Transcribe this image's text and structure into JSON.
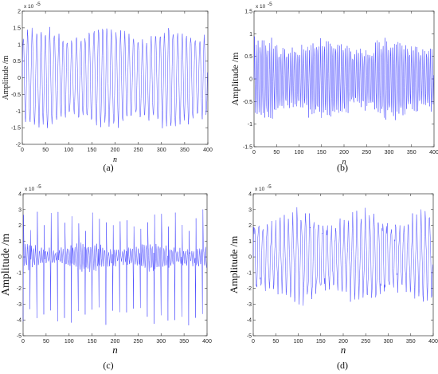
{
  "chart_data": [
    {
      "type": "line",
      "caption": "(a)",
      "ylabel": "Amplitude /m",
      "xlabel": "n",
      "scale_note": "x 10",
      "scale_exp": "-5",
      "xlim": [
        0,
        400
      ],
      "ylim": [
        -2,
        2
      ],
      "xticks": [
        "0",
        "50",
        "100",
        "150",
        "200",
        "250",
        "300",
        "350",
        "400"
      ],
      "yticks": [
        "-2",
        "-1.5",
        "-1",
        "-0.5",
        "0",
        "0.5",
        "1",
        "1.5",
        "2"
      ],
      "series_color": "#4b4bff",
      "n_points": 400,
      "signal": {
        "period": 9.5,
        "base_amplitude": 1.3,
        "amplitude_variation": 0.3,
        "min_approx": -1.75,
        "max_approx": 1.85
      }
    },
    {
      "type": "line",
      "caption": "(b)",
      "ylabel": "Amplitude /m",
      "xlabel": "n",
      "scale_note": "x 10",
      "scale_exp": "-5",
      "xlim": [
        0,
        400
      ],
      "ylim": [
        -1.5,
        1.5
      ],
      "xticks": [
        "0",
        "50",
        "100",
        "150",
        "200",
        "250",
        "300",
        "350",
        "400"
      ],
      "yticks": [
        "-1.5",
        "-1",
        "-0.5",
        "0",
        "0.5",
        "1",
        "1.5"
      ],
      "series_color": "#4b4bff",
      "n_points": 400,
      "signal": {
        "period": 4.2,
        "base_amplitude": 0.75,
        "amplitude_variation": 0.25,
        "min_approx": -1.2,
        "max_approx": 1.2
      }
    },
    {
      "type": "line",
      "caption": "(c)",
      "ylabel": "Amplitude /m",
      "xlabel": "n",
      "scale_note": "x 10",
      "scale_exp": "-5",
      "xlim": [
        0,
        400
      ],
      "ylim": [
        -5,
        4
      ],
      "xticks": [
        "0",
        "50",
        "100",
        "150",
        "200",
        "250",
        "300",
        "350",
        "400"
      ],
      "yticks": [
        "-5",
        "-4",
        "-3",
        "-2",
        "-1",
        "0",
        "1",
        "2",
        "3",
        "4"
      ],
      "series_color": "#4b4bff",
      "n_points": 400,
      "signal": {
        "period": 15,
        "base_amplitude": 0.6,
        "amplitude_variation": 0.4,
        "min_approx": -4.5,
        "max_approx": 3.2
      }
    },
    {
      "type": "line",
      "caption": "(d)",
      "ylabel": "Amplitude /m",
      "xlabel": "n",
      "scale_note": "x 10",
      "scale_exp": "-5",
      "xlim": [
        0,
        400
      ],
      "ylim": [
        -5,
        4
      ],
      "xticks": [
        "0",
        "50",
        "100",
        "150",
        "200",
        "250",
        "300",
        "350",
        "400"
      ],
      "yticks": [
        "-5",
        "-4",
        "-3",
        "-2",
        "-1",
        "0",
        "1",
        "2",
        "3",
        "4"
      ],
      "series_color": "#4b4bff",
      "n_points": 400,
      "signal": {
        "period": 9.5,
        "base_amplitude": 2.2,
        "amplitude_variation": 0.7,
        "min_approx": -4.6,
        "max_approx": 3.2
      }
    }
  ]
}
